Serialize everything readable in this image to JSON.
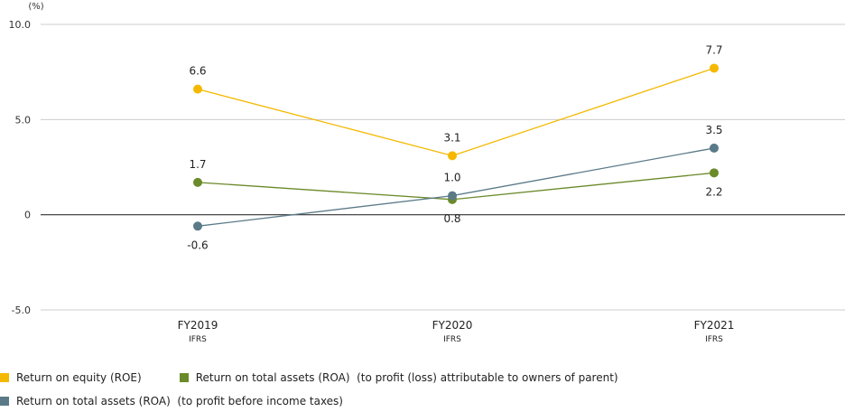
{
  "chart_data": {
    "type": "line",
    "unit_label": "(%)",
    "categories": [
      "FY2019",
      "FY2020",
      "FY2021"
    ],
    "category_sublabels": [
      "IFRS",
      "IFRS",
      "IFRS"
    ],
    "ylim": [
      -5.0,
      10.0
    ],
    "yticks": [
      {
        "value": 10.0,
        "label": "10.0"
      },
      {
        "value": 5.0,
        "label": "5.0"
      },
      {
        "value": 0,
        "label": "0"
      },
      {
        "value": -5.0,
        "label": "-5.0"
      }
    ],
    "series": [
      {
        "key": "roe",
        "name": "Return on equity (ROE)",
        "color": "#f5b800",
        "values": [
          6.6,
          3.1,
          7.7
        ],
        "labels": [
          "6.6",
          "3.1",
          "7.7"
        ],
        "label_pos": [
          "above",
          "above",
          "above"
        ]
      },
      {
        "key": "roa_parent",
        "name": "Return on total assets (ROA)  (to profit (loss) attributable to owners of parent)",
        "color": "#6b8a2a",
        "values": [
          1.7,
          0.8,
          2.2
        ],
        "labels": [
          "1.7",
          "0.8",
          "2.2"
        ],
        "label_pos": [
          "above",
          "below",
          "below"
        ]
      },
      {
        "key": "roa_pretax",
        "name": "Return on total assets (ROA)  (to profit before income taxes)",
        "color": "#5a7a88",
        "values": [
          -0.6,
          1.0,
          3.5
        ],
        "labels": [
          "-0.6",
          "1.0",
          "3.5"
        ],
        "label_pos": [
          "below",
          "above",
          "above"
        ]
      }
    ]
  }
}
